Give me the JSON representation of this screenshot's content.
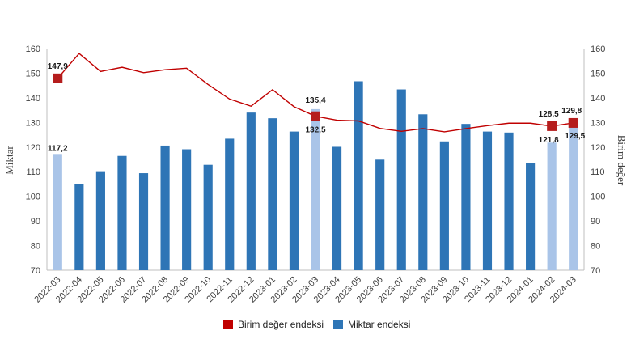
{
  "chart_data": {
    "type": "bar",
    "categories": [
      "2022-03",
      "2022-04",
      "2022-05",
      "2022-06",
      "2022-07",
      "2022-08",
      "2022-09",
      "2022-10",
      "2022-11",
      "2022-12",
      "2023-01",
      "2023-02",
      "2023-03",
      "2023-04",
      "2023-05",
      "2023-06",
      "2023-07",
      "2023-08",
      "2023-09",
      "2023-10",
      "2023-11",
      "2023-12",
      "2024-01",
      "2024-02",
      "2024-03"
    ],
    "ylabel": "Miktar",
    "y2label": "Birim değer",
    "ylim": [
      70,
      160
    ],
    "y2lim": [
      70,
      160
    ],
    "yticks": [
      "70",
      "80",
      "90",
      "100",
      "110",
      "120",
      "130",
      "140",
      "150",
      "160"
    ],
    "series": [
      {
        "name": "Miktar endeksi",
        "type": "bar",
        "axis": "left",
        "color": "#2e75b6",
        "highlight_color": "#a9c4e8",
        "highlighted": [
          0,
          12,
          23,
          24
        ],
        "values": [
          117.2,
          105,
          110.2,
          116.4,
          109.4,
          120.6,
          119.1,
          112.8,
          123.4,
          134,
          131.7,
          126.3,
          135.4,
          120.1,
          146.7,
          114.9,
          143.4,
          133.3,
          122.3,
          129.4,
          126.3,
          125.9,
          113.4,
          121.8,
          129.5
        ],
        "labels": {
          "0": "117,2",
          "12": "135,4",
          "23": "121,8",
          "24": "129,5"
        }
      },
      {
        "name": "Birim değer endeksi",
        "type": "line",
        "axis": "right",
        "color": "#c00000",
        "marker_color": "#b51d1d",
        "highlighted": [
          0,
          12,
          23,
          24
        ],
        "values": [
          147.9,
          158,
          150.7,
          152.4,
          150.2,
          151.4,
          152,
          145.4,
          139.5,
          136.6,
          143.3,
          136.4,
          132.5,
          130.9,
          130.6,
          127.6,
          126.4,
          127.5,
          126.2,
          127.5,
          128.7,
          129.7,
          129.7,
          128.5,
          129.8
        ],
        "labels": {
          "0": "147,9",
          "12": "132,5",
          "23": "128,5",
          "24": "129,8"
        }
      }
    ],
    "legend": {
      "position": "bottom",
      "items": [
        {
          "label": "Birim değer endeksi",
          "color": "#c00000"
        },
        {
          "label": "Miktar endeksi",
          "color": "#2e75b6"
        }
      ]
    }
  }
}
